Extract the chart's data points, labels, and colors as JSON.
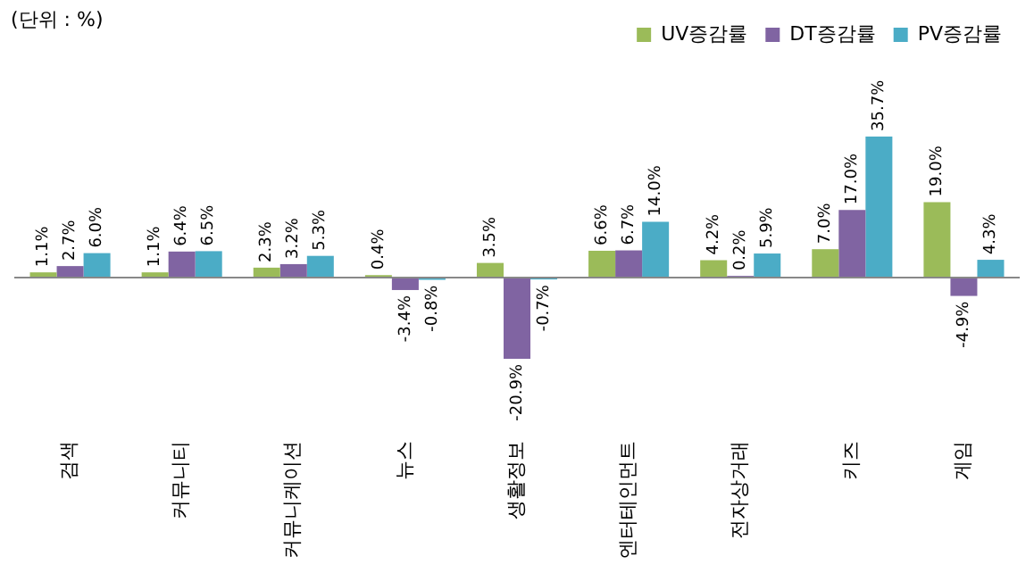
{
  "chart_data": {
    "type": "bar",
    "categories": [
      "검색",
      "커뮤니티",
      "커뮤니케이션",
      "뉴스",
      "생활정보",
      "엔터테인먼트",
      "전자상거래",
      "키즈",
      "게임"
    ],
    "series": [
      {
        "name": "UV증감률",
        "color": "#9bbb59",
        "values": [
          1.1,
          1.1,
          2.3,
          0.4,
          3.5,
          6.6,
          4.2,
          7.0,
          19.0
        ],
        "value_labels": [
          "1.1%",
          "1.1%",
          "2.3%",
          "0.4%",
          "3.5%",
          "6.6%",
          "4.2%",
          "7.0%",
          "19.0%"
        ]
      },
      {
        "name": "DT증감률",
        "color": "#8064a2",
        "values": [
          2.7,
          6.4,
          3.2,
          -3.4,
          -20.9,
          6.7,
          0.2,
          17.0,
          -4.9
        ],
        "value_labels": [
          "2.7%",
          "6.4%",
          "3.2%",
          "-3.4%",
          "-20.9%",
          "6.7%",
          "0.2%",
          "17.0%",
          "-4.9%"
        ]
      },
      {
        "name": "PV증감률",
        "color": "#4bacc6",
        "values": [
          6.0,
          6.5,
          5.3,
          -0.8,
          -0.7,
          14.0,
          5.9,
          35.7,
          4.3
        ],
        "value_labels": [
          "6.0%",
          "6.5%",
          "5.3%",
          "-0.8%",
          "-0.7%",
          "14.0%",
          "5.9%",
          "35.7%",
          "4.3%"
        ]
      }
    ],
    "annotations": [
      "(단위 : %)"
    ],
    "legend": "top right",
    "grid": false,
    "tick_labels": "x"
  }
}
